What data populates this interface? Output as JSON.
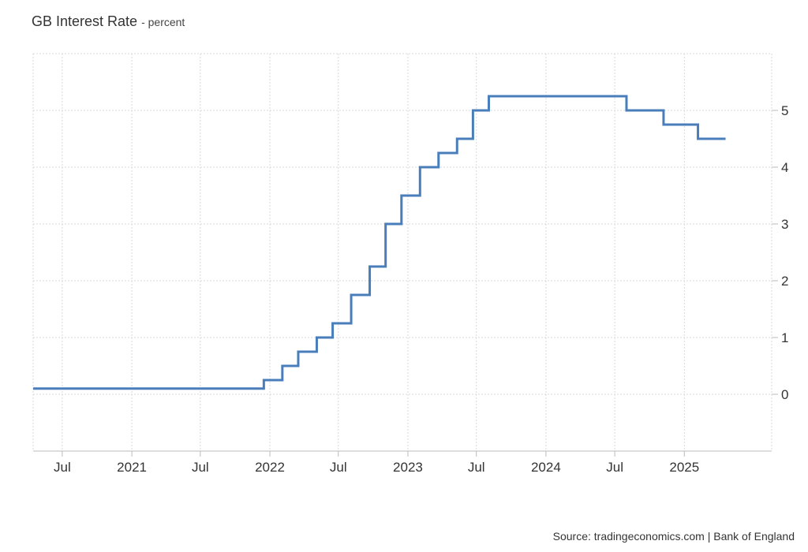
{
  "header": {
    "title": "GB Interest Rate",
    "unit": "- percent"
  },
  "footer": {
    "source": "Source: tradingeconomics.com | Bank of England"
  },
  "chart_data": {
    "type": "line",
    "step": true,
    "title": "GB Interest Rate",
    "subtitle": "percent",
    "line_color": "#4a7ebb",
    "grid": true,
    "ylim": [
      -1,
      6
    ],
    "xlim": [
      "2020-04-15",
      "2025-08-20"
    ],
    "x_ticks": [
      {
        "date": "2020-07-01",
        "label": "Jul"
      },
      {
        "date": "2021-01-01",
        "label": "2021"
      },
      {
        "date": "2021-07-01",
        "label": "Jul"
      },
      {
        "date": "2022-01-01",
        "label": "2022"
      },
      {
        "date": "2022-07-01",
        "label": "Jul"
      },
      {
        "date": "2023-01-01",
        "label": "2023"
      },
      {
        "date": "2023-07-01",
        "label": "Jul"
      },
      {
        "date": "2024-01-01",
        "label": "2024"
      },
      {
        "date": "2024-07-01",
        "label": "Jul"
      },
      {
        "date": "2025-01-01",
        "label": "2025"
      }
    ],
    "y_ticks": [
      0,
      1,
      2,
      3,
      4,
      5
    ],
    "series": [
      {
        "points": [
          {
            "x": "2020-04-15",
            "y": 0.1
          },
          {
            "x": "2021-12-16",
            "y": 0.25
          },
          {
            "x": "2022-02-03",
            "y": 0.5
          },
          {
            "x": "2022-03-17",
            "y": 0.75
          },
          {
            "x": "2022-05-05",
            "y": 1.0
          },
          {
            "x": "2022-06-16",
            "y": 1.25
          },
          {
            "x": "2022-08-04",
            "y": 1.75
          },
          {
            "x": "2022-09-22",
            "y": 2.25
          },
          {
            "x": "2022-11-03",
            "y": 3.0
          },
          {
            "x": "2022-12-15",
            "y": 3.5
          },
          {
            "x": "2023-02-02",
            "y": 4.0
          },
          {
            "x": "2023-03-23",
            "y": 4.25
          },
          {
            "x": "2023-05-11",
            "y": 4.5
          },
          {
            "x": "2023-06-22",
            "y": 5.0
          },
          {
            "x": "2023-08-03",
            "y": 5.25
          },
          {
            "x": "2024-08-01",
            "y": 5.0
          },
          {
            "x": "2024-11-07",
            "y": 4.75
          },
          {
            "x": "2025-02-06",
            "y": 4.5
          },
          {
            "x": "2025-04-20",
            "y": 4.5
          }
        ]
      }
    ]
  }
}
